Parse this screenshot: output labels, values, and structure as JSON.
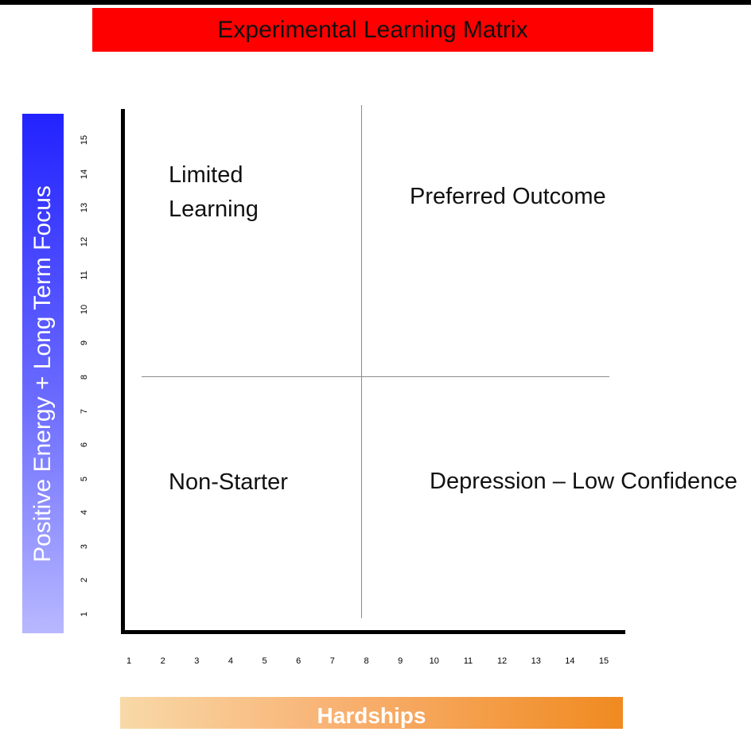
{
  "title": "Experimental Learning Matrix",
  "colors": {
    "title_banner": "#ff0000",
    "y_banner": "#4040ff",
    "x_banner": "#f08a20",
    "axes": "#000000",
    "dividers": "#8c8c8c"
  },
  "y_axis": {
    "label": "Positive Energy + Long Term Focus",
    "ticks": [
      "1",
      "2",
      "3",
      "4",
      "5",
      "6",
      "7",
      "8",
      "9",
      "10",
      "11",
      "12",
      "13",
      "14",
      "15"
    ]
  },
  "x_axis": {
    "label": "Hardships",
    "ticks": [
      "1",
      "2",
      "3",
      "4",
      "5",
      "6",
      "7",
      "8",
      "9",
      "10",
      "11",
      "12",
      "13",
      "14",
      "15"
    ]
  },
  "quadrants": {
    "top_left": "Limited Learning",
    "top_right": "Preferred Outcome",
    "bottom_left": "Non-Starter",
    "bottom_right": "Depression – Low Confidence"
  }
}
